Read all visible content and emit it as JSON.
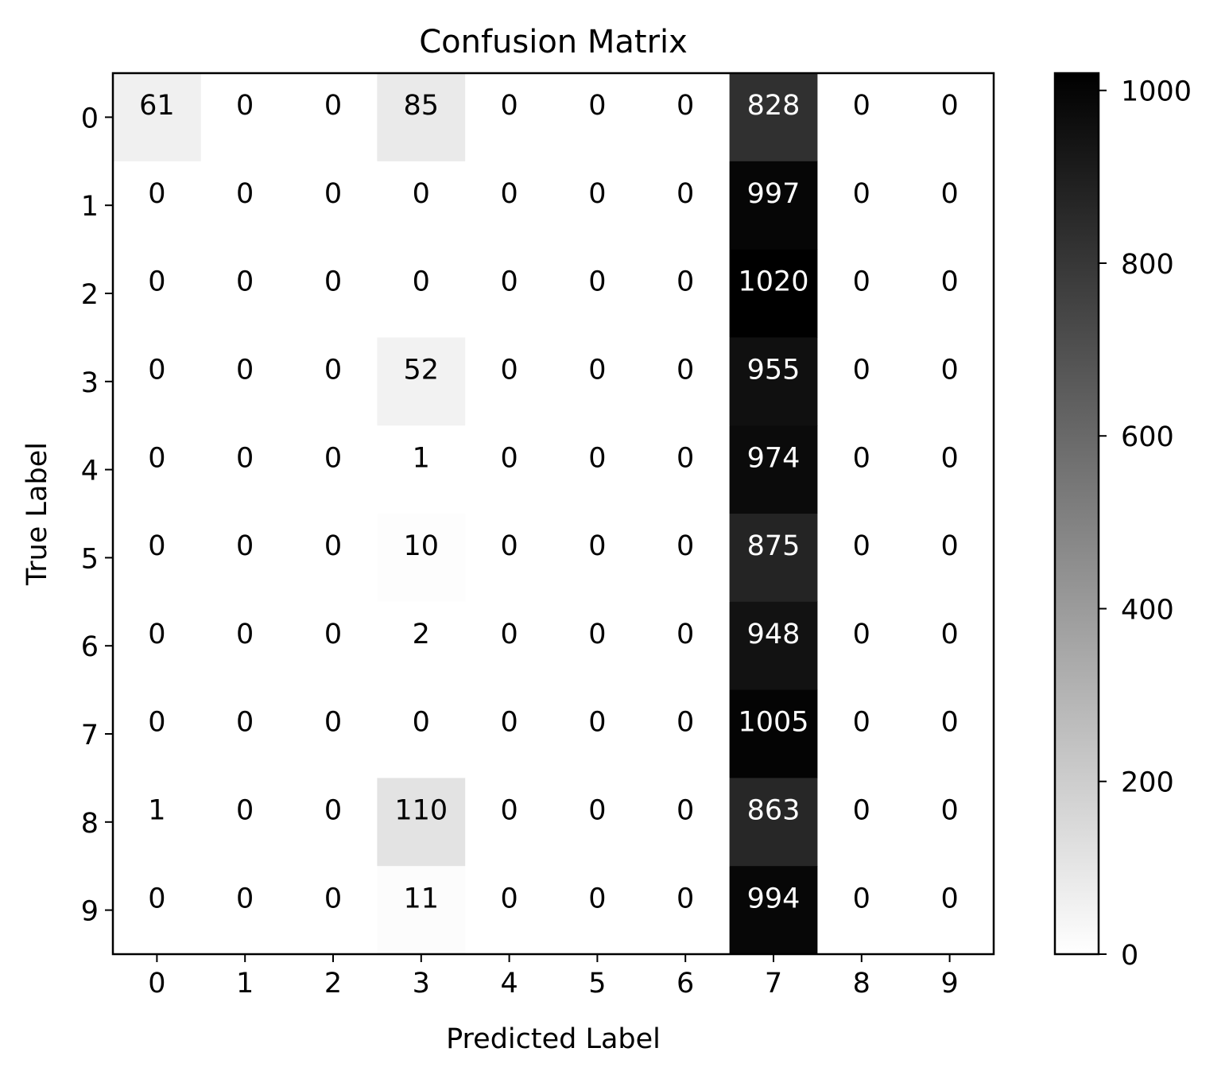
{
  "chart_data": {
    "type": "heatmap",
    "title": "Confusion Matrix",
    "xlabel": "Predicted Label",
    "ylabel": "True Label",
    "x_categories": [
      "0",
      "1",
      "2",
      "3",
      "4",
      "5",
      "6",
      "7",
      "8",
      "9"
    ],
    "y_categories": [
      "0",
      "1",
      "2",
      "3",
      "4",
      "5",
      "6",
      "7",
      "8",
      "9"
    ],
    "matrix": [
      [
        61,
        0,
        0,
        85,
        0,
        0,
        0,
        828,
        0,
        0
      ],
      [
        0,
        0,
        0,
        0,
        0,
        0,
        0,
        997,
        0,
        0
      ],
      [
        0,
        0,
        0,
        0,
        0,
        0,
        0,
        1020,
        0,
        0
      ],
      [
        0,
        0,
        0,
        52,
        0,
        0,
        0,
        955,
        0,
        0
      ],
      [
        0,
        0,
        0,
        1,
        0,
        0,
        0,
        974,
        0,
        0
      ],
      [
        0,
        0,
        0,
        10,
        0,
        0,
        0,
        875,
        0,
        0
      ],
      [
        0,
        0,
        0,
        2,
        0,
        0,
        0,
        948,
        0,
        0
      ],
      [
        0,
        0,
        0,
        0,
        0,
        0,
        0,
        1005,
        0,
        0
      ],
      [
        1,
        0,
        0,
        110,
        0,
        0,
        0,
        863,
        0,
        0
      ],
      [
        0,
        0,
        0,
        11,
        0,
        0,
        0,
        994,
        0,
        0
      ]
    ],
    "colormap": "gray_r",
    "color_range": [
      0,
      1020
    ],
    "colorbar_ticks": [
      0,
      200,
      400,
      600,
      800,
      1000
    ],
    "text_color_light": "#ffffff",
    "text_color_dark": "#000000"
  }
}
